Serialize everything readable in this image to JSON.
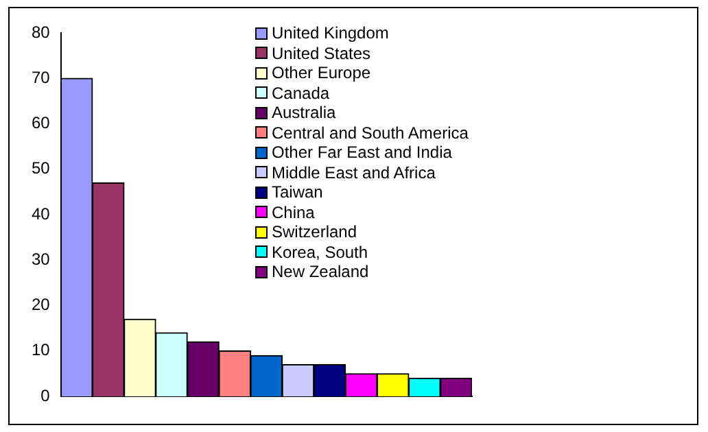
{
  "chart_data": {
    "type": "bar",
    "categories": [
      null
    ],
    "ylim": [
      0,
      80
    ],
    "yticks": [
      0,
      10,
      20,
      30,
      40,
      50,
      60,
      70,
      80
    ],
    "grid": false,
    "legend": "top right",
    "series": [
      {
        "name": "United Kingdom",
        "color": "#9999ff",
        "values": [
          70
        ]
      },
      {
        "name": "United States",
        "color": "#993366",
        "values": [
          47
        ]
      },
      {
        "name": "Other Europe",
        "color": "#ffffcc",
        "values": [
          17
        ]
      },
      {
        "name": "Canada",
        "color": "#ccffff",
        "values": [
          14
        ]
      },
      {
        "name": "Australia",
        "color": "#660066",
        "values": [
          12
        ]
      },
      {
        "name": "Central and South America",
        "color": "#ff8080",
        "values": [
          10
        ]
      },
      {
        "name": "Other Far East and India",
        "color": "#0066cc",
        "values": [
          9
        ]
      },
      {
        "name": "Middle East and Africa",
        "color": "#ccccff",
        "values": [
          7
        ]
      },
      {
        "name": "Taiwan",
        "color": "#000080",
        "values": [
          7
        ]
      },
      {
        "name": "China",
        "color": "#ff00ff",
        "values": [
          5
        ]
      },
      {
        "name": "Switzerland",
        "color": "#ffff00",
        "values": [
          5
        ]
      },
      {
        "name": "Korea, South",
        "color": "#00ffff",
        "values": [
          4
        ]
      },
      {
        "name": "New Zealand",
        "color": "#800080",
        "values": [
          4
        ]
      }
    ]
  }
}
